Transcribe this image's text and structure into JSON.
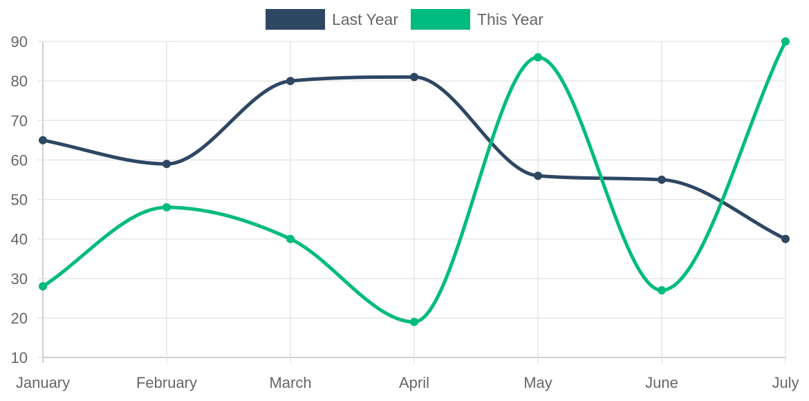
{
  "chart_data": {
    "type": "line",
    "categories": [
      "January",
      "February",
      "March",
      "April",
      "May",
      "June",
      "July"
    ],
    "series": [
      {
        "name": "Last Year",
        "color": "#2e4763",
        "values": [
          65,
          59,
          80,
          81,
          56,
          55,
          40
        ]
      },
      {
        "name": "This Year",
        "color": "#00bb7f",
        "values": [
          28,
          48,
          40,
          19,
          86,
          27,
          90
        ]
      }
    ],
    "ylim": [
      10,
      90
    ],
    "yticks": [
      10,
      20,
      30,
      40,
      50,
      60,
      70,
      80,
      90
    ],
    "grid": true,
    "smooth": true,
    "legend": "top-center",
    "title": "",
    "xlabel": "",
    "ylabel": ""
  }
}
